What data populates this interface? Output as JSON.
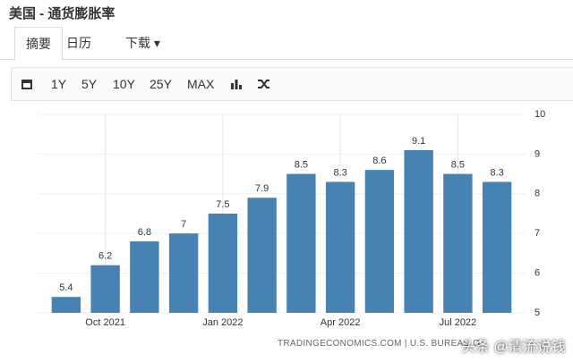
{
  "header": {
    "title": "美国 - 通货膨胀率"
  },
  "tabs": [
    "摘要",
    "日历",
    "下载"
  ],
  "toolbar": [
    "1Y",
    "5Y",
    "10Y",
    "25Y",
    "MAX"
  ],
  "source": "TRADINGECONOMICS.COM | U.S. BUREAU O",
  "watermark": "头条 @清流说钱",
  "chart_data": {
    "type": "bar",
    "categories": [
      null,
      "Oct 2021",
      null,
      null,
      "Jan 2022",
      null,
      null,
      "Apr 2022",
      null,
      null,
      "Jul 2022",
      null
    ],
    "values": [
      5.4,
      6.2,
      6.8,
      7,
      7.5,
      7.9,
      8.5,
      8.3,
      8.6,
      9.1,
      8.5,
      8.3
    ],
    "color": "#4682b4",
    "ylim": [
      5,
      10
    ],
    "yticks": [
      5,
      6,
      7,
      8,
      9,
      10
    ],
    "grid": true,
    "axis_side": "right"
  }
}
